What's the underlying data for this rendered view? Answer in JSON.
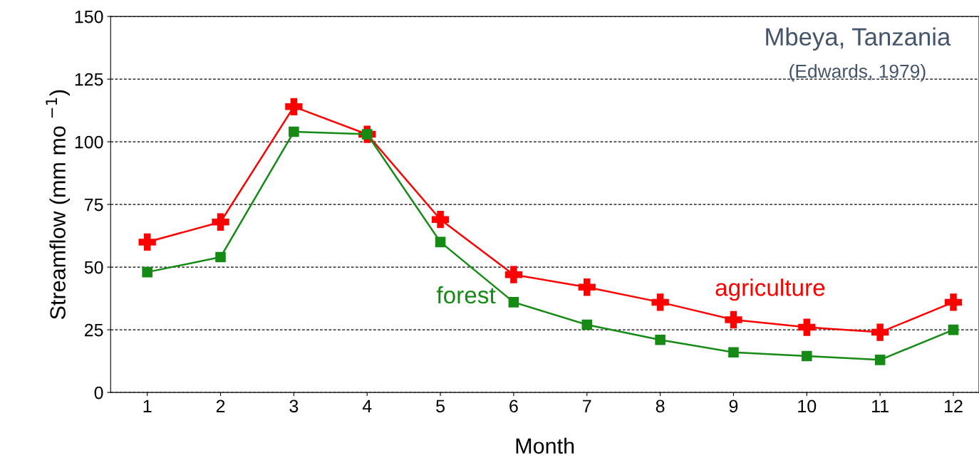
{
  "chart_data": {
    "type": "line",
    "title": "Mbeya, Tanzania",
    "subtitle": "(Edwards, 1979)",
    "xlabel": "Month",
    "ylabel": "Streamflow (mm mo $^{−1}$)",
    "x": [
      1,
      2,
      3,
      4,
      5,
      6,
      7,
      8,
      9,
      10,
      11,
      12
    ],
    "series": [
      {
        "name": "forest",
        "color": "#158a15",
        "marker": "square",
        "values": [
          48,
          54,
          104,
          103,
          60,
          36,
          27,
          21,
          16,
          14.5,
          13,
          25
        ]
      },
      {
        "name": "agriculture",
        "color": "#ff0000",
        "marker": "cross",
        "values": [
          60,
          68,
          114,
          103,
          69,
          47,
          42,
          36,
          29,
          26,
          24,
          36
        ]
      }
    ],
    "xlim": [
      0.5,
      12.35
    ],
    "ylim": [
      0,
      150
    ],
    "xticks": [
      1,
      2,
      3,
      4,
      5,
      6,
      7,
      8,
      9,
      10,
      11,
      12
    ],
    "yticks": [
      0,
      25,
      50,
      75,
      100,
      125,
      150
    ],
    "grid": "y",
    "legend": false,
    "line_style": "solid"
  }
}
